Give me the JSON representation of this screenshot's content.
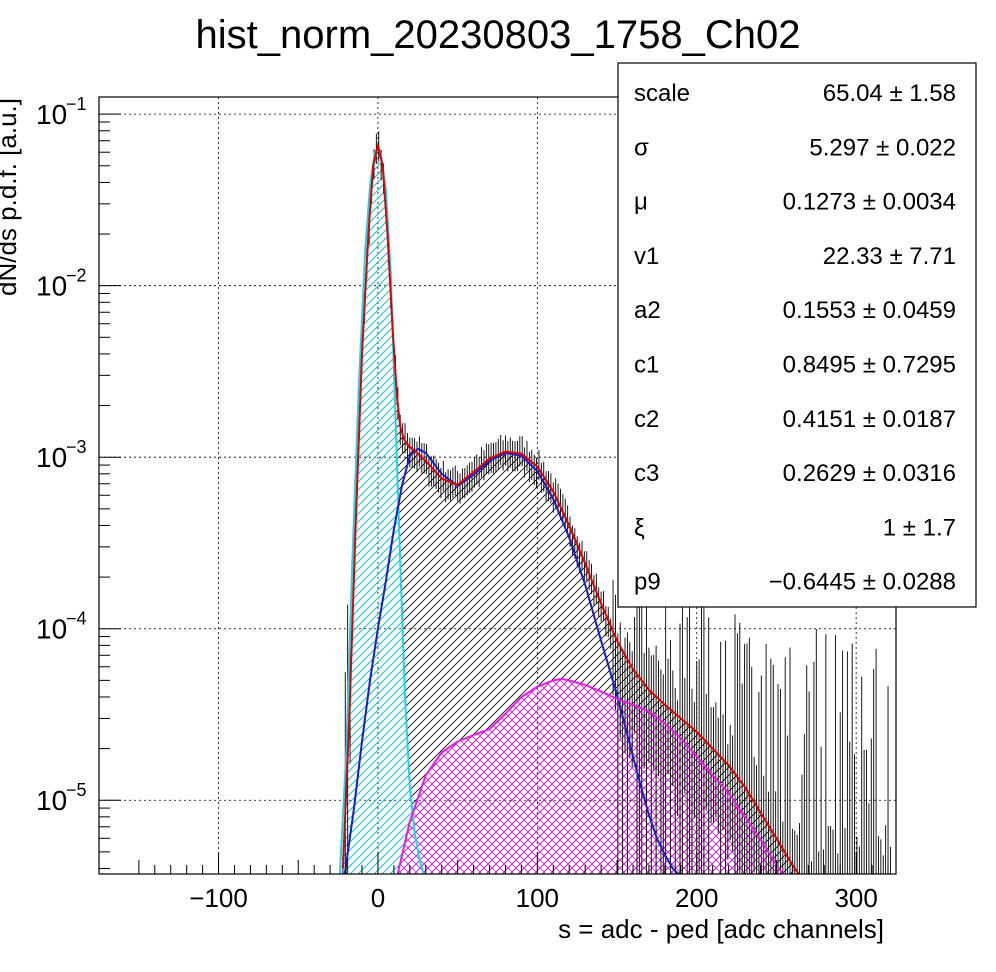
{
  "chart_data": {
    "type": "line",
    "title": "hist_norm_20230803_1758_Ch02",
    "xlabel": "s = adc - ped [adc channels]",
    "ylabel": "dN/ds p.d.f. [a.u.]",
    "xlim": [
      -175,
      325
    ],
    "ylim_log10": [
      -5.43,
      -0.9
    ],
    "y_log_scale": true,
    "grid": true,
    "x_ticks": [
      {
        "v": -100,
        "label": "−100"
      },
      {
        "v": 0,
        "label": "0"
      },
      {
        "v": 100,
        "label": "100"
      },
      {
        "v": 200,
        "label": "200"
      },
      {
        "v": 300,
        "label": "300"
      }
    ],
    "y_ticks": [
      {
        "exp": -1,
        "base": "10",
        "pow": "−1"
      },
      {
        "exp": -2,
        "base": "10",
        "pow": "−2"
      },
      {
        "exp": -3,
        "base": "10",
        "pow": "−3"
      },
      {
        "exp": -4,
        "base": "10",
        "pow": "−4"
      },
      {
        "exp": -5,
        "base": "10",
        "pow": "−5"
      }
    ],
    "series": [
      {
        "role": "total fit",
        "color": "#e00000",
        "x": [
          -22,
          -18,
          -14,
          -10,
          -6,
          -3,
          0,
          3,
          6,
          9,
          12,
          14,
          16,
          18,
          20,
          25,
          30,
          40,
          50,
          60,
          70,
          80,
          90,
          100,
          110,
          120,
          130,
          140,
          150,
          160,
          170,
          180,
          190,
          200,
          210,
          220,
          230,
          240,
          250,
          260,
          265
        ],
        "y": [
          4e-06,
          3e-05,
          0.0004,
          0.004,
          0.02,
          0.05,
          0.066,
          0.05,
          0.02,
          0.006,
          0.0022,
          0.0015,
          0.0013,
          0.0012,
          0.00115,
          0.00105,
          0.00095,
          0.00075,
          0.00069,
          0.00082,
          0.00098,
          0.00108,
          0.00105,
          0.00088,
          0.00063,
          0.0004,
          0.00024,
          0.00014,
          8.5e-05,
          5.8e-05,
          4.4e-05,
          3.6e-05,
          3e-05,
          2.5e-05,
          2e-05,
          1.6e-05,
          1.2e-05,
          8.5e-06,
          6e-06,
          4.2e-06,
          3.6e-06
        ]
      },
      {
        "role": "pedestal component",
        "color": "#22d3e6",
        "fill_hatch": "#22d3e6",
        "x": [
          -24,
          -20,
          -16,
          -12,
          -8,
          -5,
          -2,
          0,
          2,
          5,
          8,
          11,
          14,
          17,
          20,
          23,
          26,
          29
        ],
        "y": [
          3.6e-06,
          1.8e-05,
          0.00025,
          0.0026,
          0.016,
          0.038,
          0.06,
          0.063,
          0.058,
          0.036,
          0.012,
          0.0017,
          0.00024,
          4e-05,
          1.2e-05,
          6.5e-06,
          4.5e-06,
          3.6e-06
        ]
      },
      {
        "role": "single-pe component",
        "color": "#1b1bc9",
        "x": [
          -21,
          -15,
          -10,
          -5,
          0,
          5,
          10,
          15,
          20,
          25,
          30,
          40,
          50,
          60,
          70,
          80,
          90,
          100,
          110,
          120,
          130,
          140,
          150,
          160,
          165,
          170,
          175,
          180,
          185,
          190
        ],
        "y": [
          3.6e-06,
          9e-06,
          2.2e-05,
          5e-05,
          0.0001,
          0.00019,
          0.00038,
          0.00068,
          0.00102,
          0.00112,
          0.00106,
          0.0008,
          0.00068,
          0.00079,
          0.00095,
          0.00106,
          0.00102,
          0.00083,
          0.00057,
          0.00034,
          0.00018,
          8.5e-05,
          4.1e-05,
          1.8e-05,
          1.2e-05,
          8.2e-06,
          6e-06,
          4.8e-06,
          4e-06,
          3.6e-06
        ]
      },
      {
        "role": "multi-pe component",
        "color": "#e41ee4",
        "fill_hatch": "#e41ee4",
        "x": [
          12,
          20,
          30,
          40,
          50,
          60,
          70,
          80,
          90,
          100,
          110,
          115,
          120,
          130,
          140,
          150,
          160,
          170,
          180,
          190,
          200,
          210,
          220,
          230,
          240,
          250,
          255
        ],
        "y": [
          3.6e-06,
          7.5e-06,
          1.4e-05,
          1.9e-05,
          2.2e-05,
          2.4e-05,
          2.6e-05,
          3.2e-05,
          4e-05,
          4.6e-05,
          5e-05,
          5.1e-05,
          5e-05,
          4.7e-05,
          4.3e-05,
          3.9e-05,
          3.6e-05,
          3.3e-05,
          2.8e-05,
          2.3e-05,
          1.8e-05,
          1.4e-05,
          1.1e-05,
          8.1e-06,
          5.9e-06,
          4.2e-06,
          3.6e-06
        ]
      }
    ],
    "stats_box": {
      "rows": [
        {
          "name": "scale",
          "value": "65.04 ± 1.58"
        },
        {
          "name": "σ",
          "value": "5.297 ± 0.022"
        },
        {
          "name": "μ",
          "value": "0.1273 ± 0.0034"
        },
        {
          "name": "v1",
          "value": "22.33 ± 7.71"
        },
        {
          "name": "a2",
          "value": "0.1553 ± 0.0459"
        },
        {
          "name": "c1",
          "value": "0.8495 ± 0.7295"
        },
        {
          "name": "c2",
          "value": "0.4151 ± 0.0187"
        },
        {
          "name": "c3",
          "value": "0.2629 ± 0.0316"
        },
        {
          "name": "ξ",
          "value": "1 ± 1.7"
        },
        {
          "name": "p9",
          "value": "−0.6445 ± 0.0288"
        }
      ]
    }
  }
}
